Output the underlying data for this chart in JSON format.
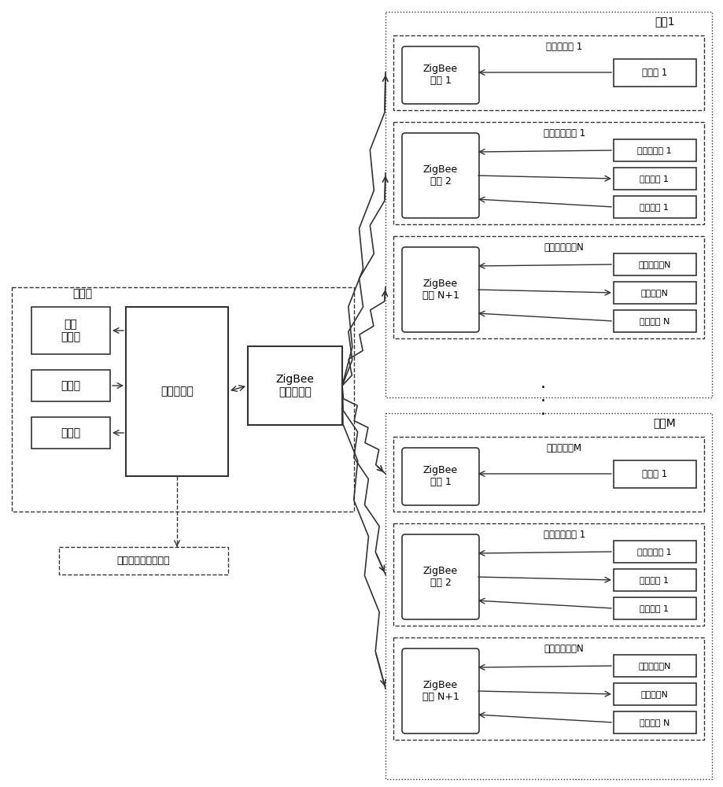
{
  "bg_color": "#ffffff",
  "line_color": "#333333",
  "text_color": "#000000",
  "fig_width": 9.2,
  "fig_height": 10.0,
  "dpi": 100,
  "nurse_station_label": "护士站",
  "embedded_host_label": "嵌入式主机",
  "zigbee_coordinator_label": "ZigBee\n网络协调器",
  "touch_screen_label": "触摸\n显示屏",
  "card_reader_left_label": "读卡器",
  "printer_label": "打印机",
  "hospital_server_label": "医院信息管理服务器",
  "ward1_label": "病房1",
  "wardM_label": "病房M",
  "card_module1_label": "读卡器模块 1",
  "card_modulem_label": "读卡器模块M",
  "infusion_module1_label": "输液监控模块 1",
  "infusion_moduleN_label": "输液监控模块N",
  "zigbee1_label": "ZigBee\n模块 1",
  "zigbee2_label": "ZigBee\n模块 2",
  "zigbeeN1_label": "ZigBee\n模块 N+1",
  "card_reader1_label": "读卡器 1",
  "weight_sensor1_label": "称重传感器 1",
  "clamp_motor1_label": "夹断电机 1",
  "call_btn1_label": "呼叫按鈕 1",
  "weight_sensorN_label": "称重传感器N",
  "clamp_motorN_label": "夹断电机N",
  "call_btnN_label": "呼叫按鈕 N",
  "dots_label": "·  ·  ·"
}
